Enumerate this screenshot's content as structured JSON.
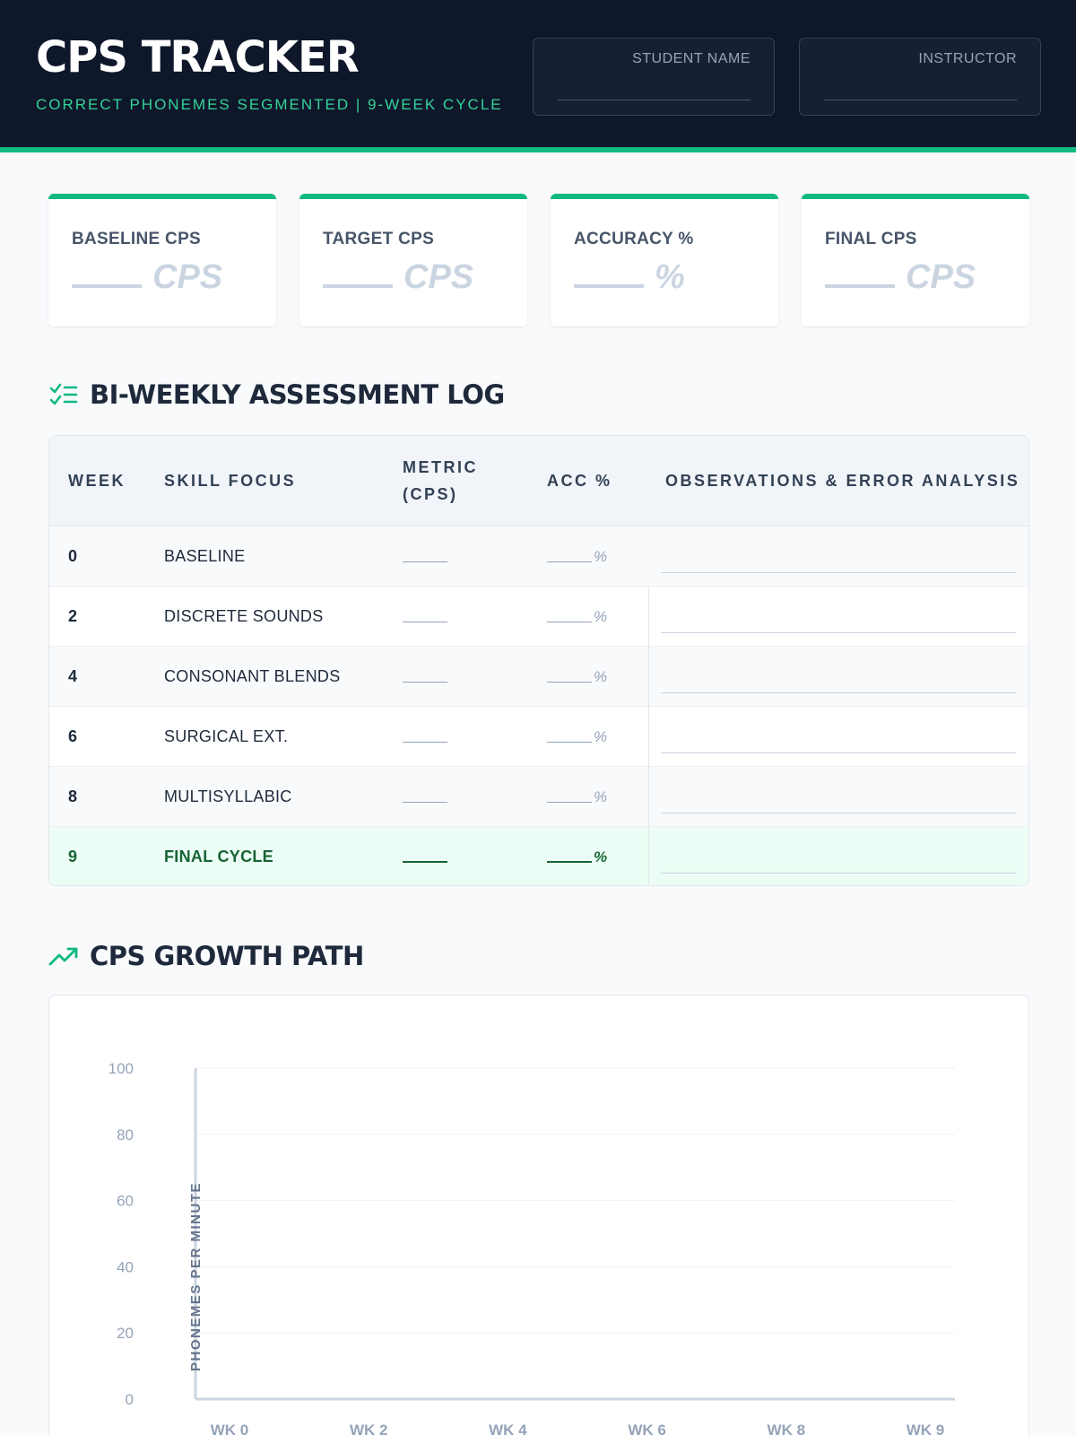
{
  "header": {
    "title": "CPS TRACKER",
    "subtitle": "CORRECT PHONEMES SEGMENTED | 9-WEEK CYCLE",
    "student_label": "STUDENT NAME",
    "instructor_label": "INSTRUCTOR"
  },
  "stats": [
    {
      "label": "BASELINE CPS",
      "unit": "CPS"
    },
    {
      "label": "TARGET CPS",
      "unit": "CPS"
    },
    {
      "label": "ACCURACY %",
      "unit": "%"
    },
    {
      "label": "FINAL CPS",
      "unit": "CPS"
    }
  ],
  "log": {
    "title": "BI-WEEKLY ASSESSMENT LOG",
    "icon": "checklist-icon",
    "columns": {
      "week": "WEEK",
      "skill": "SKILL FOCUS",
      "metric_line1": "METRIC",
      "metric_line2": "(CPS)",
      "acc": "ACC %",
      "observations": "OBSERVATIONS & ERROR ANALYSIS"
    },
    "percent_sign": "%",
    "rows": [
      {
        "week": "0",
        "skill": "BASELINE"
      },
      {
        "week": "2",
        "skill": "DISCRETE SOUNDS"
      },
      {
        "week": "4",
        "skill": "CONSONANT BLENDS"
      },
      {
        "week": "6",
        "skill": "SURGICAL EXT."
      },
      {
        "week": "8",
        "skill": "MULTISYLLABIC"
      },
      {
        "week": "9",
        "skill": "FINAL CYCLE"
      }
    ],
    "accent_color": "#10b981",
    "final_row_color": "#166534"
  },
  "growth": {
    "title": "CPS GROWTH PATH",
    "icon": "trending-up-icon"
  },
  "chart_data": {
    "type": "line",
    "categories": [
      "WK 0",
      "WK 2",
      "WK 4",
      "WK 6",
      "WK 8",
      "WK 9"
    ],
    "series": [],
    "title": "",
    "xlabel": "",
    "ylabel": "PHONEMES PER MINUTE",
    "yticks": [
      "100",
      "80",
      "60",
      "40",
      "20",
      "0"
    ],
    "ylim": [
      0,
      100
    ],
    "grid": true
  }
}
